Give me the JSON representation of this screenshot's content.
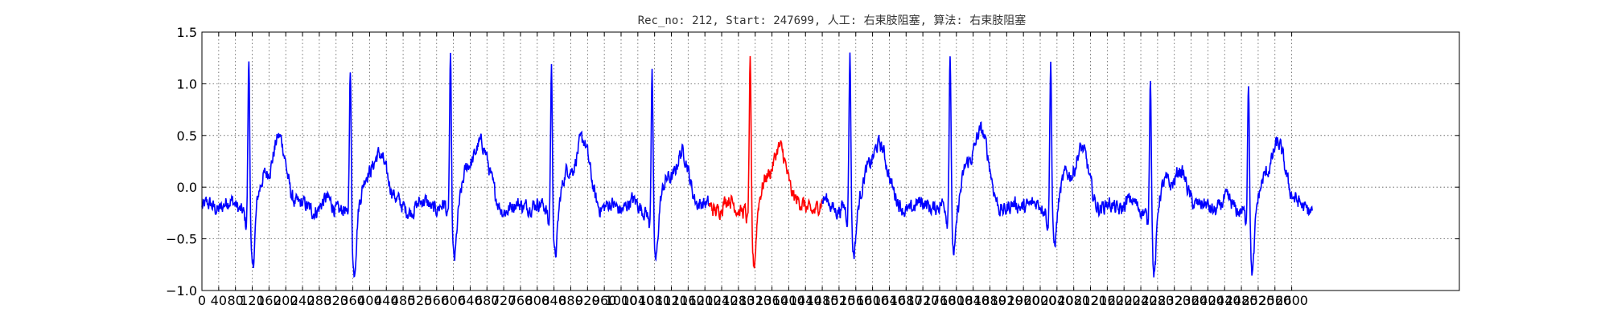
{
  "chart_data": {
    "type": "line",
    "title": "Rec_no: 212, Start: 247699, 人工: 右束肢阻塞, 算法: 右束肢阻塞",
    "xlim": [
      0,
      3000
    ],
    "ylim": [
      -1.0,
      1.5
    ],
    "yticks": [
      -1.0,
      -0.5,
      0.0,
      0.5,
      1.0,
      1.5
    ],
    "ytick_labels": [
      "−1.0",
      "−0.5",
      "0.0",
      "0.5",
      "1.0",
      "1.5"
    ],
    "xticks": [
      0,
      40,
      80,
      120,
      160,
      200,
      240,
      280,
      320,
      360,
      400,
      440,
      480,
      520,
      560,
      600,
      640,
      680,
      720,
      760,
      800,
      840,
      880,
      920,
      960,
      1000,
      1040,
      1080,
      1120,
      1160,
      1200,
      1240,
      1280,
      1320,
      1360,
      1400,
      1440,
      1480,
      1520,
      1560,
      1600,
      1640,
      1680,
      1720,
      1760,
      1800,
      1840,
      1880,
      1920,
      1960,
      2000,
      2040,
      2080,
      2120,
      2160,
      2200,
      2240,
      2280,
      2320,
      2360,
      2400,
      2440,
      2480,
      2520,
      2560,
      2600
    ],
    "grid": true,
    "sample_count": 2650,
    "series_color": "#0000ff",
    "highlight_color": "#ff0000",
    "highlight_range": [
      1210,
      1480
    ],
    "beats": [
      {
        "r": 112,
        "peak": 1.2,
        "trough": -0.78,
        "t_peak": 0.45
      },
      {
        "r": 354,
        "peak": 1.1,
        "trough": -0.8,
        "t_peak": 0.32
      },
      {
        "r": 593,
        "peak": 1.17,
        "trough": -0.63,
        "t_peak": 0.47
      },
      {
        "r": 834,
        "peak": 1.15,
        "trough": -0.6,
        "t_peak": 0.45
      },
      {
        "r": 1074,
        "peak": 1.1,
        "trough": -0.7,
        "t_peak": 0.3
      },
      {
        "r": 1308,
        "peak": 1.15,
        "trough": -0.75,
        "t_peak": 0.36
      },
      {
        "r": 1546,
        "peak": 1.2,
        "trough": -0.6,
        "t_peak": 0.44
      },
      {
        "r": 1785,
        "peak": 1.25,
        "trough": -0.55,
        "t_peak": 0.58
      },
      {
        "r": 2025,
        "peak": 1.2,
        "trough": -0.5,
        "t_peak": 0.35
      },
      {
        "r": 2263,
        "peak": 1.1,
        "trough": -0.83,
        "t_peak": 0.12
      },
      {
        "r": 2497,
        "peak": 1.04,
        "trough": -0.82,
        "t_peak": 0.4
      }
    ]
  }
}
